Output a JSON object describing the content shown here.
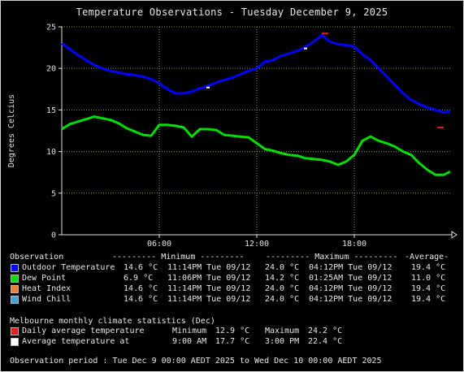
{
  "title": "Temperature Observations - Tuesday December 9, 2025",
  "colors": {
    "outdoor": "#0000ff",
    "dew": "#00dd00",
    "heat": "#f08030",
    "chill": "#40a0e0",
    "daily_avg": "#dd2020",
    "avg_at": "#ffffff",
    "grid": "#9a9a40",
    "axes": "#e0e0e0"
  },
  "chart_data": {
    "type": "line",
    "title": "Temperature Observations - Tuesday December 9, 2025",
    "ylabel": "Degrees Celcius",
    "xlabel": "",
    "xlim": [
      0,
      24
    ],
    "ylim": [
      0,
      25
    ],
    "xticks": [
      6,
      12,
      18
    ],
    "xtick_labels": [
      "06:00",
      "12:00",
      "18:00"
    ],
    "yticks": [
      0,
      5,
      10,
      15,
      20,
      25
    ],
    "grid": true,
    "series": [
      {
        "name": "Outdoor Temperature",
        "color_key": "outdoor",
        "x": [
          0,
          0.5,
          1,
          1.5,
          2,
          2.5,
          3,
          3.5,
          4,
          4.5,
          5,
          5.5,
          6,
          6.5,
          7,
          7.5,
          8,
          8.5,
          9,
          9.5,
          10,
          10.5,
          11,
          11.5,
          12,
          12.5,
          13,
          13.5,
          14,
          14.5,
          15,
          15.5,
          16,
          16.5,
          17,
          17.5,
          18,
          18.5,
          19,
          19.5,
          20,
          20.5,
          21,
          21.5,
          22,
          22.5,
          23,
          23.5,
          23.9
        ],
        "y": [
          23,
          22.3,
          21.6,
          21.0,
          20.4,
          20.0,
          19.7,
          19.5,
          19.3,
          19.2,
          19.0,
          18.7,
          18.2,
          17.5,
          17.0,
          17.0,
          17.2,
          17.6,
          17.9,
          18.3,
          18.6,
          18.9,
          19.3,
          19.7,
          20.0,
          20.8,
          21.0,
          21.5,
          21.8,
          22.1,
          22.6,
          23.2,
          24.0,
          23.2,
          22.9,
          22.8,
          22.6,
          21.7,
          21.0,
          20.0,
          19.0,
          18.0,
          17.0,
          16.2,
          15.7,
          15.3,
          15.0,
          14.7,
          14.8
        ]
      },
      {
        "name": "Dew Point",
        "color_key": "dew",
        "x": [
          0,
          0.5,
          1,
          1.5,
          2,
          2.5,
          3,
          3.5,
          4,
          4.5,
          5,
          5.5,
          6,
          6.5,
          7,
          7.5,
          8,
          8.5,
          9,
          9.5,
          10,
          10.5,
          11,
          11.5,
          12,
          12.5,
          13,
          13.5,
          14,
          14.5,
          15,
          15.5,
          16,
          16.5,
          17,
          17.5,
          18,
          18.5,
          19,
          19.5,
          20,
          20.5,
          21,
          21.5,
          22,
          22.5,
          23,
          23.5,
          23.9
        ],
        "y": [
          12.7,
          13.3,
          13.6,
          13.9,
          14.2,
          14.0,
          13.8,
          13.4,
          12.8,
          12.4,
          12.0,
          11.9,
          13.2,
          13.2,
          13.1,
          12.9,
          11.8,
          12.7,
          12.7,
          12.6,
          12.0,
          11.9,
          11.8,
          11.7,
          11.0,
          10.3,
          10.1,
          9.8,
          9.6,
          9.5,
          9.2,
          9.1,
          9.0,
          8.8,
          8.4,
          8.8,
          9.6,
          11.3,
          11.8,
          11.3,
          11.0,
          10.6,
          10.0,
          9.6,
          8.6,
          7.8,
          7.2,
          7.2,
          7.6
        ]
      },
      {
        "name": "Average temperature at",
        "color_key": "avg_at",
        "marker": true,
        "x": [
          9,
          15
        ],
        "y": [
          17.7,
          22.4
        ]
      },
      {
        "name": "Daily average temperature",
        "color_key": "daily_avg",
        "marker": true,
        "x": [
          16.2,
          23.3
        ],
        "y": [
          24.2,
          12.9
        ]
      }
    ]
  },
  "legend": {
    "headers": {
      "observation": "Observation",
      "minimum": "--------- Minimum ---------",
      "maximum": "--------- Maximum ---------",
      "average": "-Average-"
    },
    "rows": [
      {
        "label": "Outdoor Temperature",
        "color_key": "outdoor",
        "min_val": "14.6 °C",
        "min_time": "11:14PM Tue 09/12",
        "max_val": "24.0 °C",
        "max_time": "04:12PM Tue 09/12",
        "avg": "19.4 °C"
      },
      {
        "label": "Dew Point",
        "color_key": "dew",
        "min_val": "6.9 °C",
        "min_time": "11:06PM Tue 09/12",
        "max_val": "14.2 °C",
        "max_time": "01:25AM Tue 09/12",
        "avg": "11.0 °C"
      },
      {
        "label": "Heat Index",
        "color_key": "heat",
        "min_val": "14.6 °C",
        "min_time": "11:14PM Tue 09/12",
        "max_val": "24.0 °C",
        "max_time": "04:12PM Tue 09/12",
        "avg": "19.4 °C"
      },
      {
        "label": "Wind Chill",
        "color_key": "chill",
        "min_val": "14.6 °C",
        "min_time": "11:14PM Tue 09/12",
        "max_val": "24.0 °C",
        "max_time": "04:12PM Tue 09/12",
        "avg": "19.4 °C"
      }
    ]
  },
  "climate": {
    "heading": "Melbourne monthly climate statistics (Dec)",
    "daily_avg": {
      "label": "Daily average temperature",
      "min_label": "Minimum",
      "min_val": "12.9 °C",
      "max_label": "Maximum",
      "max_val": "24.2 °C"
    },
    "avg_at": {
      "label": "Average temperature at",
      "t1": "9:00 AM",
      "v1": "17.7 °C",
      "t2": "3:00 PM",
      "v2": "22.4 °C"
    }
  },
  "period": "Observation period : Tue Dec 9 00:00 AEDT 2025 to Wed Dec 10 00:00 AEDT 2025"
}
